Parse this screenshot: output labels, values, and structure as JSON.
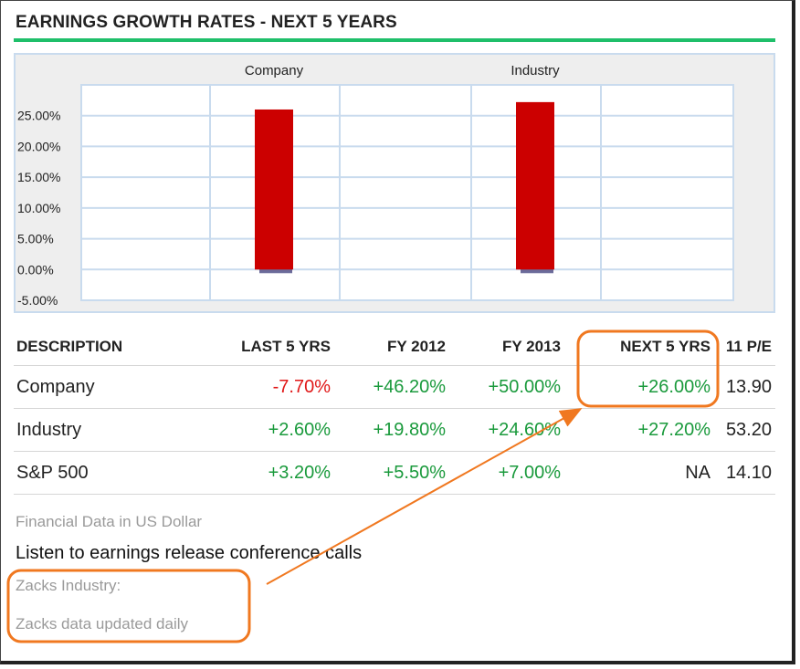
{
  "section": {
    "title": "EARNINGS GROWTH RATES - NEXT 5 YEARS"
  },
  "chart_data": {
    "type": "bar",
    "title": "",
    "categories": [
      "Company",
      "Industry"
    ],
    "values": [
      26.0,
      27.2
    ],
    "ylim": [
      -5,
      30
    ],
    "yticks": [
      "25.00%",
      "20.00%",
      "15.00%",
      "10.00%",
      "5.00%",
      "0.00%",
      "-5.00%"
    ],
    "xlabel": "",
    "ylabel": "",
    "grid": true,
    "bar_color": "#cc0000",
    "shadow_color": "#6b6b9a"
  },
  "table": {
    "headers": [
      "DESCRIPTION",
      "LAST 5 YRS",
      "FY 2012",
      "FY 2013",
      "NEXT 5 YRS",
      "11 P/E"
    ],
    "rows": [
      {
        "label": "Company",
        "cells": [
          "-7.70%",
          "+46.20%",
          "+50.00%",
          "+26.00%",
          "13.90"
        ]
      },
      {
        "label": "Industry",
        "cells": [
          "+2.60%",
          "+19.80%",
          "+24.60%",
          "+27.20%",
          "53.20"
        ]
      },
      {
        "label": "S&P 500",
        "cells": [
          "+3.20%",
          "+5.50%",
          "+7.00%",
          "NA",
          "14.10"
        ]
      }
    ]
  },
  "footer": {
    "currency_note": "Financial Data in US Dollar",
    "conference_link": "Listen to earnings release conference calls",
    "zacks_industry": "Zacks Industry:",
    "zacks_updated": "Zacks data updated daily"
  },
  "colors": {
    "accent_rule": "#1fbf6a",
    "positive": "#1a9a3c",
    "negative": "#e01818",
    "annotation": "#f07820"
  }
}
